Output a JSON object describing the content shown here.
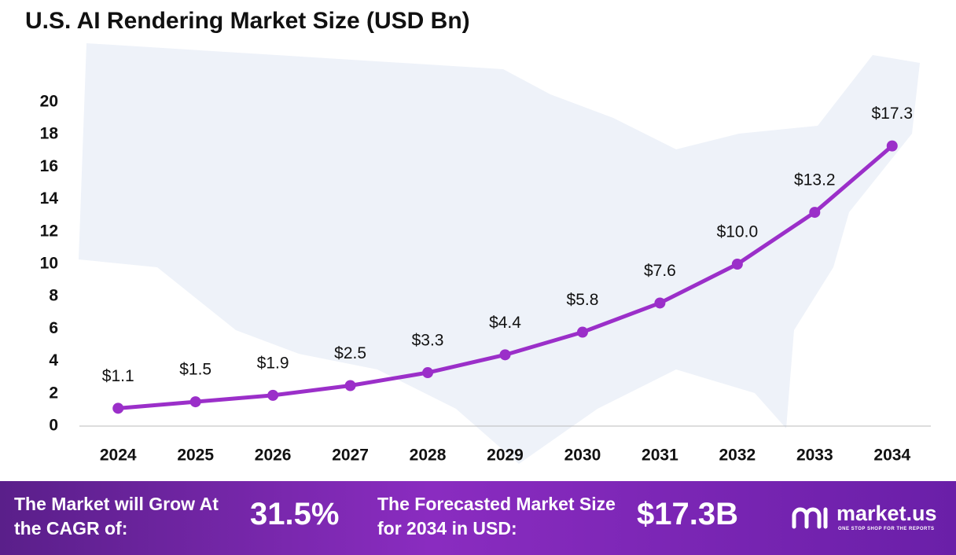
{
  "chart_data": {
    "type": "line",
    "title": "U.S. AI Rendering Market  Size (USD Bn)",
    "categories": [
      "2024",
      "2025",
      "2026",
      "2027",
      "2028",
      "2029",
      "2030",
      "2031",
      "2032",
      "2033",
      "2034"
    ],
    "values": [
      1.1,
      1.5,
      1.9,
      2.5,
      3.3,
      4.4,
      5.8,
      7.6,
      10.0,
      13.2,
      17.3
    ],
    "value_labels": [
      "$1.1",
      "$1.5",
      "$1.9",
      "$2.5",
      "$3.3",
      "$4.4",
      "$5.8",
      "$7.6",
      "$10.0",
      "$13.2",
      "$17.3"
    ],
    "color": "#9b2fc9",
    "ylim": [
      0,
      20
    ],
    "yticks": [
      0,
      2,
      4,
      6,
      8,
      10,
      12,
      14,
      16,
      18,
      20
    ],
    "grid": false
  },
  "footer": {
    "cagr_text": "The Market will Grow At the CAGR of:",
    "cagr_value": "31.5%",
    "forecast_text": "The Forecasted Market Size for 2034 in USD:",
    "forecast_value": "$17.3B",
    "brand": "market.us",
    "tagline": "ONE STOP SHOP FOR THE REPORTS"
  }
}
